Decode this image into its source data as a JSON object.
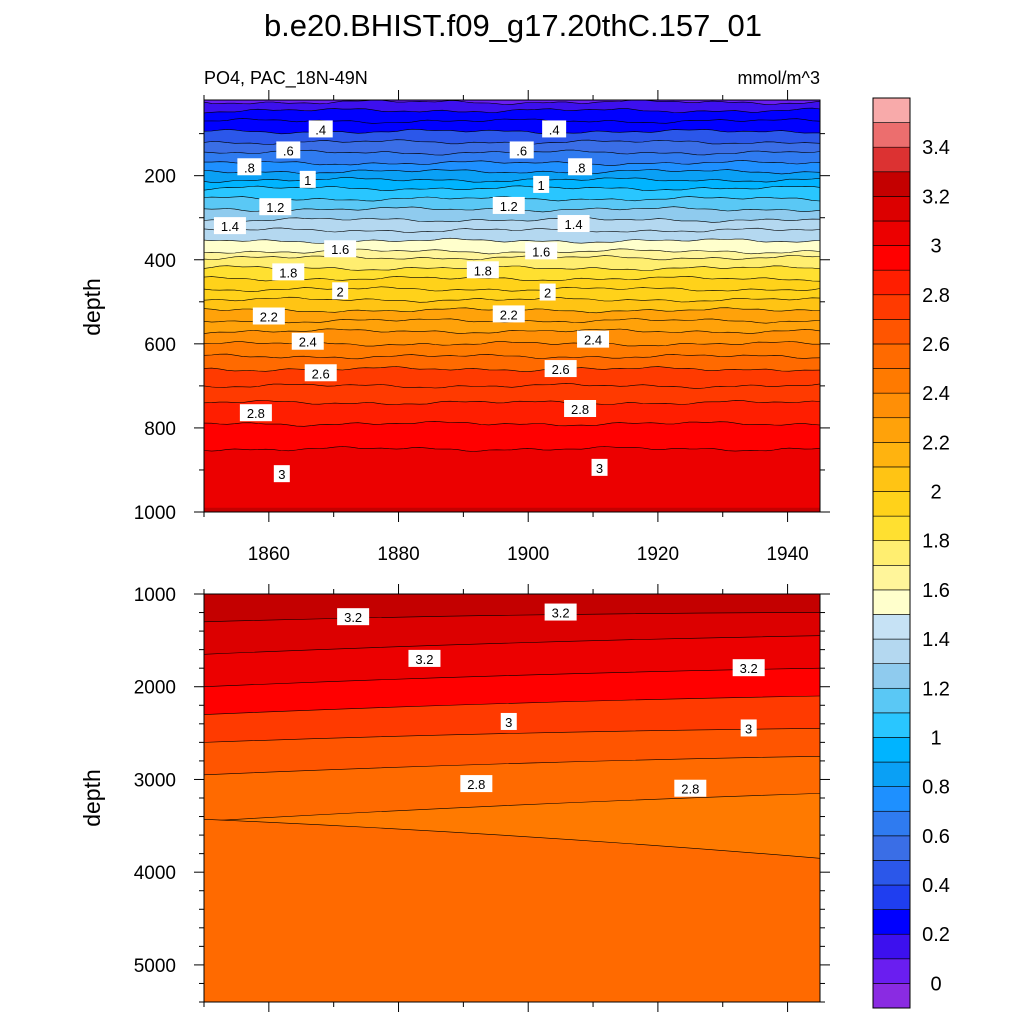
{
  "figure": {
    "title": "b.e20.BHIST.f09_g17.20thC.157_01",
    "left_subtitle": "PO4, PAC_18N-49N",
    "right_subtitle": "mmol/m^3"
  },
  "colorbar": {
    "tick_labels": [
      "0",
      "0.2",
      "0.4",
      "0.6",
      "0.8",
      "1",
      "1.2",
      "1.4",
      "1.6",
      "1.8",
      "2",
      "2.2",
      "2.4",
      "2.6",
      "2.8",
      "3",
      "3.2",
      "3.4"
    ],
    "colors": [
      "#8a2be2",
      "#6a1ef0",
      "#3d10ee",
      "#0000ff",
      "#1f3ef0",
      "#2b57ea",
      "#3a6ee6",
      "#2f7bf0",
      "#1e90ff",
      "#0aa0f5",
      "#00b4ff",
      "#29c6ff",
      "#5ac8f5",
      "#8fcbee",
      "#b4d8f0",
      "#c6e2f5",
      "#ffffcc",
      "#fff59a",
      "#ffee70",
      "#ffe030",
      "#ffd21a",
      "#ffc414",
      "#ffb30f",
      "#ffa20a",
      "#ff8f06",
      "#ff7a00",
      "#ff6a00",
      "#ff5500",
      "#ff3a00",
      "#ff1e00",
      "#ff0000",
      "#ec0000",
      "#dc0000",
      "#c40000",
      "#dc3232",
      "#ec6e6e",
      "#f8aaaa"
    ]
  },
  "chart_data": [
    {
      "type": "heatmap",
      "panel": "upper",
      "ylabel": "depth",
      "xlabel": "",
      "xlim": [
        1850,
        1945
      ],
      "ylim": [
        1000,
        20
      ],
      "y_reversed": true,
      "x_ticks": [
        "1860",
        "1880",
        "1900",
        "1920",
        "1940"
      ],
      "y_ticks": [
        "200",
        "400",
        "600",
        "800",
        "1000"
      ],
      "contour_levels": [
        0.1,
        0.2,
        0.3,
        0.4,
        0.5,
        0.6,
        0.7,
        0.8,
        0.9,
        1.0,
        1.1,
        1.2,
        1.3,
        1.4,
        1.5,
        1.6,
        1.7,
        1.8,
        1.9,
        2.0,
        2.1,
        2.2,
        2.3,
        2.4,
        2.5,
        2.6,
        2.7,
        2.8,
        2.9,
        3.0,
        3.1,
        3.2
      ],
      "contour_depths": [
        25,
        45,
        70,
        95,
        120,
        145,
        170,
        190,
        210,
        230,
        255,
        280,
        305,
        330,
        355,
        380,
        395,
        420,
        445,
        470,
        495,
        520,
        545,
        570,
        600,
        630,
        660,
        700,
        740,
        790,
        850,
        990
      ],
      "contour_labels": [
        {
          "text": ".4",
          "x": 1868,
          "y": 90
        },
        {
          "text": ".4",
          "x": 1904,
          "y": 90
        },
        {
          "text": ".6",
          "x": 1863,
          "y": 140
        },
        {
          "text": ".6",
          "x": 1899,
          "y": 140
        },
        {
          "text": ".8",
          "x": 1857,
          "y": 180
        },
        {
          "text": ".8",
          "x": 1908,
          "y": 180
        },
        {
          "text": "1",
          "x": 1866,
          "y": 210
        },
        {
          "text": "1",
          "x": 1902,
          "y": 222
        },
        {
          "text": "1.2",
          "x": 1861,
          "y": 275
        },
        {
          "text": "1.2",
          "x": 1897,
          "y": 272
        },
        {
          "text": "1.4",
          "x": 1854,
          "y": 320
        },
        {
          "text": "1.4",
          "x": 1907,
          "y": 315
        },
        {
          "text": "1.6",
          "x": 1871,
          "y": 375
        },
        {
          "text": "1.6",
          "x": 1902,
          "y": 380
        },
        {
          "text": "1.8",
          "x": 1863,
          "y": 430
        },
        {
          "text": "1.8",
          "x": 1893,
          "y": 425
        },
        {
          "text": "2",
          "x": 1871,
          "y": 475
        },
        {
          "text": "2",
          "x": 1903,
          "y": 478
        },
        {
          "text": "2.2",
          "x": 1860,
          "y": 535
        },
        {
          "text": "2.2",
          "x": 1897,
          "y": 530
        },
        {
          "text": "2.4",
          "x": 1866,
          "y": 595
        },
        {
          "text": "2.4",
          "x": 1910,
          "y": 590
        },
        {
          "text": "2.6",
          "x": 1868,
          "y": 670
        },
        {
          "text": "2.6",
          "x": 1905,
          "y": 660
        },
        {
          "text": "2.8",
          "x": 1858,
          "y": 765
        },
        {
          "text": "2.8",
          "x": 1908,
          "y": 755
        },
        {
          "text": "3",
          "x": 1862,
          "y": 910
        },
        {
          "text": "3",
          "x": 1911,
          "y": 895
        }
      ]
    },
    {
      "type": "heatmap",
      "panel": "lower",
      "ylabel": "depth",
      "xlabel": "",
      "xlim": [
        1850,
        1945
      ],
      "ylim": [
        5350,
        1000
      ],
      "y_reversed": true,
      "x_ticks": [],
      "y_ticks": [
        "1000",
        "2000",
        "3000",
        "4000",
        "5000"
      ],
      "contour_levels": [
        3.2,
        3.1,
        3.0,
        2.9,
        2.8,
        2.7
      ],
      "contour_depths_left": [
        1000,
        1300,
        1600,
        1950,
        2300,
        2600,
        2950,
        3450
      ],
      "contour_depths_right": [
        1000,
        1200,
        1450,
        1750,
        2050,
        2350,
        2650,
        2850,
        3300
      ],
      "contour_labels": [
        {
          "text": "3.2",
          "x": 1873,
          "y": 1250
        },
        {
          "text": "3.2",
          "x": 1905,
          "y": 1200
        },
        {
          "text": "3.2",
          "x": 1884,
          "y": 1700
        },
        {
          "text": "3.2",
          "x": 1934,
          "y": 1800
        },
        {
          "text": "3",
          "x": 1897,
          "y": 2380
        },
        {
          "text": "3",
          "x": 1934,
          "y": 2450
        },
        {
          "text": "2.8",
          "x": 1892,
          "y": 3050
        },
        {
          "text": "2.8",
          "x": 1925,
          "y": 3100
        }
      ]
    }
  ]
}
